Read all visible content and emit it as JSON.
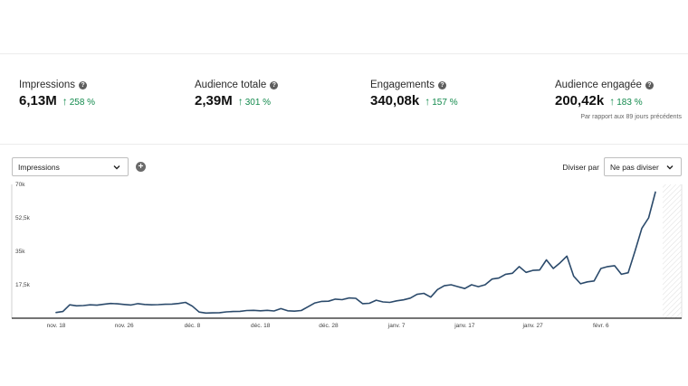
{
  "metrics": [
    {
      "label": "Impressions",
      "value": "6,13M",
      "change": "258 %"
    },
    {
      "label": "Audience totale",
      "value": "2,39M",
      "change": "301 %"
    },
    {
      "label": "Engagements",
      "value": "340,08k",
      "change": "157 %"
    },
    {
      "label": "Audience engagée",
      "value": "200,42k",
      "change": "183 %"
    }
  ],
  "comparison_note": "Par rapport aux 89 jours précédents",
  "controls": {
    "metric_select_value": "Impressions",
    "split_label": "Diviser par",
    "split_select_value": "Ne pas diviser"
  },
  "icons": {
    "help": "help-circle-icon",
    "trend": "arrow-up-icon",
    "add": "plus-circle-icon",
    "dropdown": "chevron-down-icon"
  },
  "colors": {
    "line": "#2b4a6b",
    "positive": "#138a4d",
    "axis": "#222222"
  },
  "chart_data": {
    "type": "line",
    "title": "",
    "xlabel": "",
    "ylabel": "",
    "ylim": [
      0,
      70000
    ],
    "yticks": [
      {
        "value": 17500,
        "label": "17,5k"
      },
      {
        "value": 35000,
        "label": "35k"
      },
      {
        "value": 52500,
        "label": "52,5k"
      },
      {
        "value": 70000,
        "label": "70k"
      }
    ],
    "xtick_labels": [
      "nov. 18",
      "nov. 26",
      "déc. 8",
      "déc. 18",
      "déc. 28",
      "janv. 7",
      "janv. 17",
      "janv. 27",
      "févr. 6"
    ],
    "xtick_indices": [
      0,
      10,
      20,
      30,
      40,
      50,
      60,
      70,
      80
    ],
    "series": [
      {
        "values": [
          3000,
          3500,
          7000,
          6500,
          6600,
          7000,
          6800,
          7300,
          7700,
          7500,
          7200,
          6900,
          7600,
          7200,
          7000,
          7100,
          7300,
          7400,
          7700,
          8300,
          6300,
          3200,
          2700,
          2800,
          2900,
          3300,
          3500,
          3600,
          4000,
          4100,
          3900,
          4100,
          3800,
          5000,
          3900,
          3700,
          4000,
          6000,
          8000,
          8800,
          8900,
          10000,
          9700,
          10600,
          10400,
          7600,
          7800,
          9400,
          8500,
          8300,
          9100,
          9600,
          10500,
          12500,
          13000,
          11000,
          15000,
          17000,
          17500,
          16500,
          15500,
          17500,
          16500,
          17500,
          20500,
          21000,
          23000,
          23500,
          27000,
          24000,
          25000,
          25200,
          30500,
          26000,
          29000,
          32500,
          22000,
          18000,
          19000,
          19500,
          26000,
          27000,
          27500,
          23000,
          23800,
          35000,
          47000,
          52500,
          66000
        ]
      }
    ],
    "hatched_region": "last-period",
    "grid": false,
    "legend": "none"
  }
}
